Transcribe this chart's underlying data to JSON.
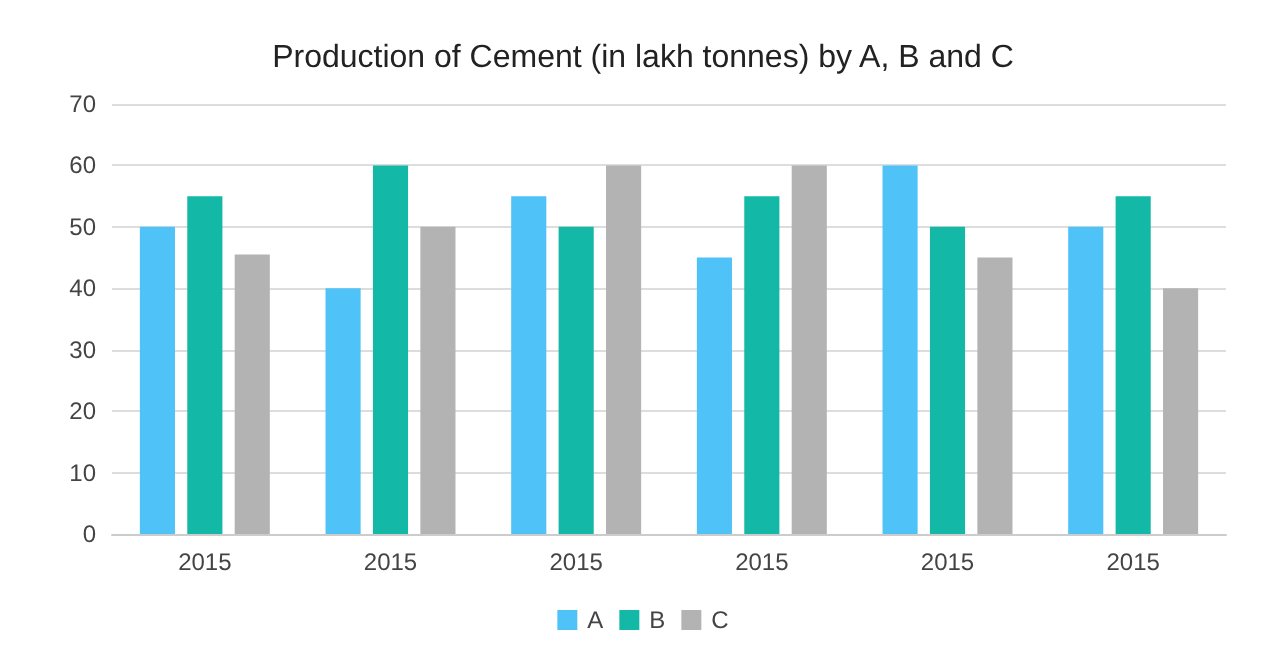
{
  "chart_data": {
    "type": "bar",
    "title": "Production of Cement (in lakh tonnes) by A, B and C",
    "categories": [
      "2015",
      "2015",
      "2015",
      "2015",
      "2015",
      "2015"
    ],
    "series": [
      {
        "name": "A",
        "color": "#4fc3f7",
        "values": [
          50,
          40,
          55,
          45,
          60,
          50
        ]
      },
      {
        "name": "B",
        "color": "#14b8a6",
        "values": [
          55,
          60,
          50,
          55,
          50,
          55
        ]
      },
      {
        "name": "C",
        "color": "#b3b3b3",
        "values": [
          45.5,
          50,
          60,
          60,
          45,
          40
        ]
      }
    ],
    "ylim": [
      0,
      70
    ],
    "yticks": [
      0,
      10,
      20,
      30,
      40,
      50,
      60,
      70
    ],
    "grid": "y",
    "legend": "bottom"
  }
}
